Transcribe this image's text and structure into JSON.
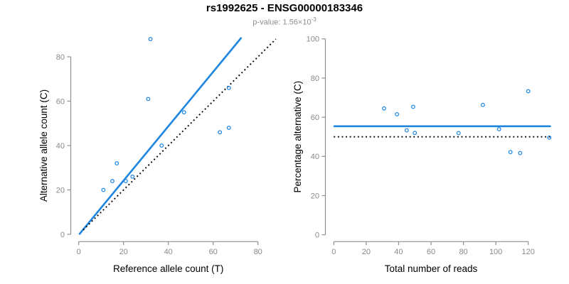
{
  "header": {
    "title": "rs1992625 - ENSG00000183346",
    "subtitle_prefix": "p-value: 1.56×10",
    "subtitle_exponent": "-3"
  },
  "colors": {
    "blue": "#1E86E0",
    "black": "#000000",
    "axis_gray": "#8f8f8f",
    "tick_label_gray": "#8a8a8a",
    "subtitle_gray": "#8e8e8e"
  },
  "chart_data": [
    {
      "type": "scatter",
      "name": "allele-count-scatter",
      "xlabel": "Reference allele count (T)",
      "ylabel": "Alternative allele count (C)",
      "xticks": [
        0,
        20,
        40,
        60,
        80
      ],
      "yticks": [
        0,
        20,
        40,
        60,
        80
      ],
      "xlim": [
        0,
        88
      ],
      "ylim": [
        0,
        90
      ],
      "grid": false,
      "marker": "open-circle",
      "points": [
        [
          11,
          20
        ],
        [
          15,
          24
        ],
        [
          17,
          32
        ],
        [
          21,
          24
        ],
        [
          24,
          26
        ],
        [
          31,
          61
        ],
        [
          32,
          88
        ],
        [
          37,
          40
        ],
        [
          47,
          55
        ],
        [
          63,
          46
        ],
        [
          67,
          48
        ],
        [
          67,
          66
        ]
      ],
      "lines": [
        {
          "name": "fitted-ratio-line",
          "color": "blue",
          "dash": "solid",
          "x1": 0.4,
          "y1": 0.2,
          "x2": 72.4,
          "y2": 88.4
        },
        {
          "name": "identity-line",
          "color": "black",
          "dash": "dotted",
          "x1": 2.0,
          "y1": 2.0,
          "x2": 88.0,
          "y2": 88.0
        }
      ]
    },
    {
      "type": "scatter",
      "name": "percentage-vs-reads-scatter",
      "xlabel": "Total number of reads",
      "ylabel": "Percentage alternative (C)",
      "xticks": [
        0,
        20,
        40,
        60,
        80,
        100,
        120
      ],
      "yticks": [
        0,
        20,
        40,
        60,
        80,
        100
      ],
      "xlim": [
        0,
        134
      ],
      "ylim": [
        0,
        100
      ],
      "grid": false,
      "marker": "open-circle",
      "points": [
        [
          31,
          64.5
        ],
        [
          39,
          61.5
        ],
        [
          45,
          53.3
        ],
        [
          49,
          65.3
        ],
        [
          50,
          52.0
        ],
        [
          77,
          51.9
        ],
        [
          92,
          66.3
        ],
        [
          102,
          53.9
        ],
        [
          109,
          42.2
        ],
        [
          115,
          41.7
        ],
        [
          120,
          73.3
        ],
        [
          133,
          49.6
        ]
      ],
      "lines": [
        {
          "name": "fitted-ratio-line",
          "color": "blue",
          "dash": "solid",
          "x1": 0.3,
          "y1": 55.4,
          "x2": 133.5,
          "y2": 55.4
        },
        {
          "name": "fifty-percent-line",
          "color": "black",
          "dash": "dotted",
          "x1": 0.0,
          "y1": 50.0,
          "x2": 133.9,
          "y2": 50.0
        }
      ]
    }
  ]
}
